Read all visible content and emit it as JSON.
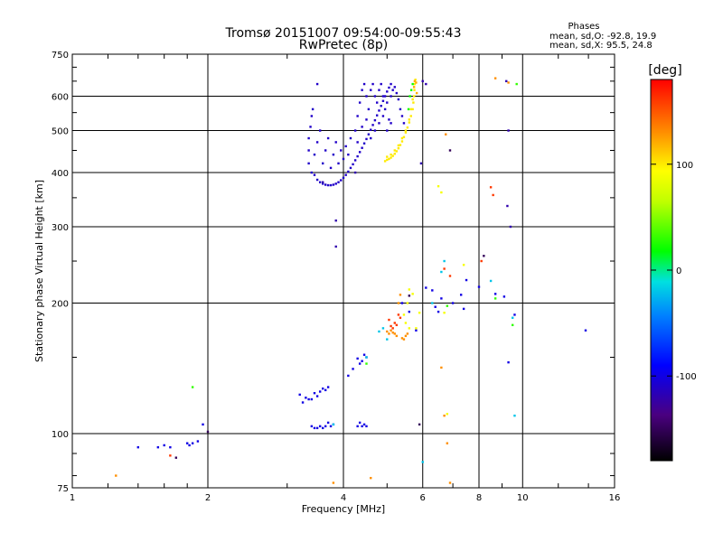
{
  "chart_data": {
    "type": "scatter",
    "title": "Tromsø 20151007 09:54:00-09:55:43",
    "subtitle": "RwPretec (8p)",
    "xlabel": "Frequency [MHz]",
    "ylabel": "Stationary phase Virtual Height [km]",
    "x_scale": "log",
    "y_scale": "log",
    "xlim": [
      1,
      16
    ],
    "ylim": [
      75,
      750
    ],
    "x_ticks": [
      1,
      2,
      4,
      6,
      8,
      10,
      16
    ],
    "x_tick_labels": [
      "1",
      "2",
      "4",
      "6",
      "8",
      "10",
      "16"
    ],
    "y_ticks": [
      75,
      100,
      200,
      300,
      400,
      500,
      600,
      750
    ],
    "y_tick_labels": [
      "75",
      "100",
      "200",
      "300",
      "400",
      "500",
      "600",
      "750"
    ],
    "grid": true,
    "info": {
      "heading": "Phases",
      "line1": "mean, sd,O:  -92.8, 19.9",
      "line2": "mean, sd,X:  95.5, 24.8"
    },
    "colorbar": {
      "label": "[deg]",
      "range": [
        -180,
        180
      ],
      "ticks": [
        100,
        0,
        -100
      ],
      "tick_labels": [
        "100",
        "0",
        "-100"
      ]
    },
    "point_groups": [
      {
        "name": "o-f2-trace",
        "phase": -110,
        "points": [
          [
            3.45,
            395
          ],
          [
            3.5,
            385
          ],
          [
            3.55,
            380
          ],
          [
            3.6,
            377
          ],
          [
            3.65,
            375
          ],
          [
            3.7,
            374
          ],
          [
            3.75,
            374
          ],
          [
            3.8,
            375
          ],
          [
            3.85,
            377
          ],
          [
            3.9,
            380
          ],
          [
            3.95,
            384
          ],
          [
            4.0,
            389
          ],
          [
            4.05,
            395
          ],
          [
            4.1,
            402
          ],
          [
            4.15,
            410
          ],
          [
            4.2,
            418
          ],
          [
            4.25,
            427
          ],
          [
            4.3,
            436
          ],
          [
            4.35,
            446
          ],
          [
            4.4,
            456
          ],
          [
            4.45,
            467
          ],
          [
            4.5,
            478
          ],
          [
            4.55,
            490
          ],
          [
            4.6,
            502
          ],
          [
            4.65,
            515
          ],
          [
            4.7,
            528
          ],
          [
            4.75,
            542
          ],
          [
            4.8,
            556
          ],
          [
            4.85,
            570
          ],
          [
            4.9,
            585
          ],
          [
            4.95,
            600
          ],
          [
            5.0,
            615
          ],
          [
            5.05,
            628
          ],
          [
            5.1,
            640
          ],
          [
            3.35,
            420
          ],
          [
            3.35,
            450
          ],
          [
            3.35,
            480
          ],
          [
            3.38,
            510
          ],
          [
            3.4,
            540
          ],
          [
            3.42,
            560
          ],
          [
            3.4,
            400
          ],
          [
            3.45,
            440
          ],
          [
            3.5,
            470
          ],
          [
            3.55,
            500
          ],
          [
            3.6,
            420
          ],
          [
            3.65,
            450
          ],
          [
            3.7,
            480
          ],
          [
            3.75,
            410
          ],
          [
            3.8,
            440
          ],
          [
            3.85,
            470
          ],
          [
            3.9,
            420
          ],
          [
            3.95,
            450
          ],
          [
            4.0,
            430
          ],
          [
            4.05,
            460
          ],
          [
            4.1,
            440
          ],
          [
            4.15,
            480
          ],
          [
            4.3,
            540
          ],
          [
            4.35,
            580
          ],
          [
            4.4,
            620
          ],
          [
            4.45,
            640
          ],
          [
            4.5,
            600
          ],
          [
            4.55,
            560
          ],
          [
            4.6,
            620
          ],
          [
            4.65,
            640
          ],
          [
            4.7,
            600
          ],
          [
            4.75,
            580
          ],
          [
            4.8,
            620
          ],
          [
            4.85,
            640
          ],
          [
            4.9,
            600
          ],
          [
            4.95,
            560
          ],
          [
            5.0,
            580
          ],
          [
            5.05,
            530
          ],
          [
            5.1,
            600
          ],
          [
            5.15,
            620
          ],
          [
            4.25,
            500
          ],
          [
            4.3,
            470
          ],
          [
            4.4,
            510
          ],
          [
            4.5,
            530
          ],
          [
            4.6,
            480
          ],
          [
            4.7,
            500
          ],
          [
            4.8,
            520
          ],
          [
            4.9,
            540
          ],
          [
            5.0,
            500
          ],
          [
            5.1,
            520
          ]
        ]
      },
      {
        "name": "o-f2-top",
        "phase": -110,
        "points": [
          [
            3.5,
            640
          ],
          [
            5.2,
            630
          ],
          [
            5.25,
            610
          ],
          [
            5.3,
            590
          ],
          [
            5.35,
            560
          ],
          [
            5.4,
            540
          ],
          [
            5.45,
            520
          ]
        ]
      },
      {
        "name": "x-f2-trace",
        "phase": 100,
        "points": [
          [
            4.95,
            425
          ],
          [
            5.0,
            428
          ],
          [
            5.05,
            430
          ],
          [
            5.1,
            433
          ],
          [
            5.15,
            437
          ],
          [
            5.2,
            442
          ],
          [
            5.25,
            448
          ],
          [
            5.3,
            455
          ],
          [
            5.35,
            463
          ],
          [
            5.4,
            472
          ],
          [
            5.45,
            483
          ],
          [
            5.5,
            495
          ],
          [
            5.55,
            508
          ],
          [
            5.6,
            522
          ],
          [
            5.65,
            540
          ],
          [
            5.7,
            560
          ],
          [
            5.72,
            580
          ],
          [
            5.74,
            600
          ],
          [
            5.75,
            620
          ],
          [
            5.76,
            640
          ],
          [
            5.78,
            655
          ],
          [
            5.0,
            435
          ],
          [
            5.1,
            440
          ],
          [
            5.2,
            450
          ],
          [
            5.3,
            462
          ],
          [
            5.4,
            480
          ],
          [
            5.5,
            500
          ],
          [
            5.6,
            530
          ],
          [
            5.65,
            560
          ],
          [
            5.7,
            590
          ]
        ]
      },
      {
        "name": "x-f2-green",
        "phase": 20,
        "points": [
          [
            5.62,
            600
          ],
          [
            5.66,
            620
          ],
          [
            5.7,
            640
          ],
          [
            5.58,
            560
          ]
        ]
      },
      {
        "name": "x-f2-orange",
        "phase": 120,
        "points": [
          [
            5.74,
            630
          ],
          [
            5.76,
            650
          ],
          [
            5.8,
            645
          ],
          [
            5.82,
            610
          ]
        ]
      },
      {
        "name": "sporadic-misc",
        "phase": -120,
        "points": [
          [
            3.85,
            310
          ],
          [
            3.85,
            270
          ],
          [
            3.6,
            380
          ],
          [
            4.25,
            400
          ],
          [
            5.95,
            420
          ],
          [
            6.0,
            650
          ],
          [
            6.1,
            640
          ],
          [
            9.2,
            650
          ],
          [
            9.3,
            500
          ],
          [
            9.4,
            300
          ],
          [
            9.25,
            335
          ]
        ]
      },
      {
        "name": "lower-mixed-blue",
        "phase": -100,
        "points": [
          [
            3.2,
            123
          ],
          [
            3.3,
            121
          ],
          [
            3.4,
            120
          ],
          [
            3.5,
            122
          ],
          [
            3.55,
            125
          ],
          [
            3.6,
            127
          ],
          [
            3.65,
            126
          ],
          [
            3.7,
            128
          ],
          [
            3.45,
            124
          ],
          [
            3.35,
            120
          ],
          [
            3.25,
            118
          ],
          [
            3.4,
            104
          ],
          [
            3.45,
            103
          ],
          [
            3.5,
            103
          ],
          [
            3.55,
            104
          ],
          [
            3.6,
            103
          ],
          [
            3.65,
            104
          ],
          [
            3.7,
            106
          ],
          [
            3.75,
            104
          ],
          [
            3.8,
            105
          ],
          [
            4.3,
            104
          ],
          [
            4.35,
            106
          ],
          [
            4.4,
            104
          ],
          [
            4.45,
            105
          ],
          [
            4.5,
            104
          ],
          [
            4.1,
            136
          ],
          [
            4.2,
            141
          ],
          [
            4.3,
            149
          ],
          [
            4.4,
            147
          ],
          [
            4.35,
            145
          ],
          [
            4.45,
            152
          ],
          [
            4.5,
            150
          ],
          [
            5.4,
            200
          ],
          [
            5.6,
            191
          ],
          [
            5.8,
            173
          ],
          [
            6.1,
            217
          ],
          [
            6.3,
            214
          ],
          [
            6.4,
            196
          ],
          [
            6.5,
            191
          ],
          [
            6.6,
            205
          ],
          [
            7.0,
            200
          ],
          [
            7.3,
            209
          ],
          [
            7.4,
            194
          ],
          [
            7.5,
            226
          ],
          [
            8.0,
            218
          ],
          [
            8.7,
            210
          ],
          [
            9.1,
            207
          ],
          [
            9.3,
            146
          ],
          [
            9.6,
            188
          ],
          [
            13.8,
            173
          ],
          [
            1.4,
            93
          ],
          [
            1.55,
            93
          ],
          [
            1.6,
            94
          ],
          [
            1.65,
            93
          ],
          [
            1.8,
            95
          ],
          [
            1.85,
            95
          ],
          [
            1.82,
            94
          ],
          [
            1.9,
            96
          ],
          [
            1.95,
            105
          ]
        ]
      },
      {
        "name": "lower-mixed-red",
        "phase": 160,
        "points": [
          [
            5.05,
            183
          ],
          [
            5.1,
            177
          ],
          [
            5.15,
            175
          ],
          [
            5.2,
            180
          ],
          [
            5.25,
            178
          ],
          [
            5.3,
            188
          ],
          [
            5.35,
            185
          ],
          [
            6.7,
            240
          ],
          [
            6.9,
            231
          ],
          [
            8.1,
            250
          ],
          [
            8.5,
            370
          ],
          [
            8.6,
            355
          ],
          [
            1.65,
            89
          ]
        ]
      },
      {
        "name": "lower-mixed-orange",
        "phase": 130,
        "points": [
          [
            5.0,
            172
          ],
          [
            5.05,
            170
          ],
          [
            5.1,
            173
          ],
          [
            5.15,
            171
          ],
          [
            5.2,
            170
          ],
          [
            5.25,
            168
          ],
          [
            5.4,
            166
          ],
          [
            5.45,
            165
          ],
          [
            5.5,
            168
          ],
          [
            5.55,
            170
          ],
          [
            5.3,
            200
          ],
          [
            5.35,
            209
          ],
          [
            6.6,
            142
          ],
          [
            6.7,
            110
          ],
          [
            6.8,
            95
          ],
          [
            6.9,
            77
          ],
          [
            6.75,
            490
          ],
          [
            9.3,
            645
          ],
          [
            8.7,
            660
          ],
          [
            3.8,
            77
          ],
          [
            4.6,
            79
          ],
          [
            1.25,
            80
          ]
        ]
      },
      {
        "name": "lower-mixed-yellow",
        "phase": 90,
        "points": [
          [
            5.45,
            188
          ],
          [
            5.5,
            180
          ],
          [
            5.6,
            175
          ],
          [
            5.55,
            200
          ],
          [
            5.6,
            215
          ],
          [
            5.7,
            210
          ],
          [
            5.8,
            175
          ],
          [
            5.9,
            190
          ],
          [
            6.7,
            190
          ],
          [
            6.8,
            111
          ],
          [
            6.5,
            372
          ],
          [
            6.6,
            360
          ],
          [
            7.4,
            245
          ]
        ]
      },
      {
        "name": "lower-mixed-cyan",
        "phase": -20,
        "points": [
          [
            4.8,
            172
          ],
          [
            4.9,
            175
          ],
          [
            5.0,
            165
          ],
          [
            6.7,
            250
          ],
          [
            6.6,
            236
          ],
          [
            9.6,
            110
          ],
          [
            9.5,
            185
          ],
          [
            6.0,
            86
          ],
          [
            4.5,
            150
          ],
          [
            3.8,
            105
          ],
          [
            6.3,
            200
          ],
          [
            8.5,
            225
          ]
        ]
      },
      {
        "name": "lower-mixed-green",
        "phase": 30,
        "points": [
          [
            4.5,
            145
          ],
          [
            1.85,
            128
          ],
          [
            6.8,
            197
          ],
          [
            9.7,
            640
          ],
          [
            9.5,
            178
          ],
          [
            8.7,
            205
          ]
        ]
      },
      {
        "name": "lower-mixed-purple",
        "phase": -150,
        "points": [
          [
            2.0,
            101
          ],
          [
            1.7,
            88
          ],
          [
            5.9,
            105
          ],
          [
            6.9,
            450
          ],
          [
            5.6,
            208
          ],
          [
            8.2,
            257
          ]
        ]
      }
    ]
  }
}
